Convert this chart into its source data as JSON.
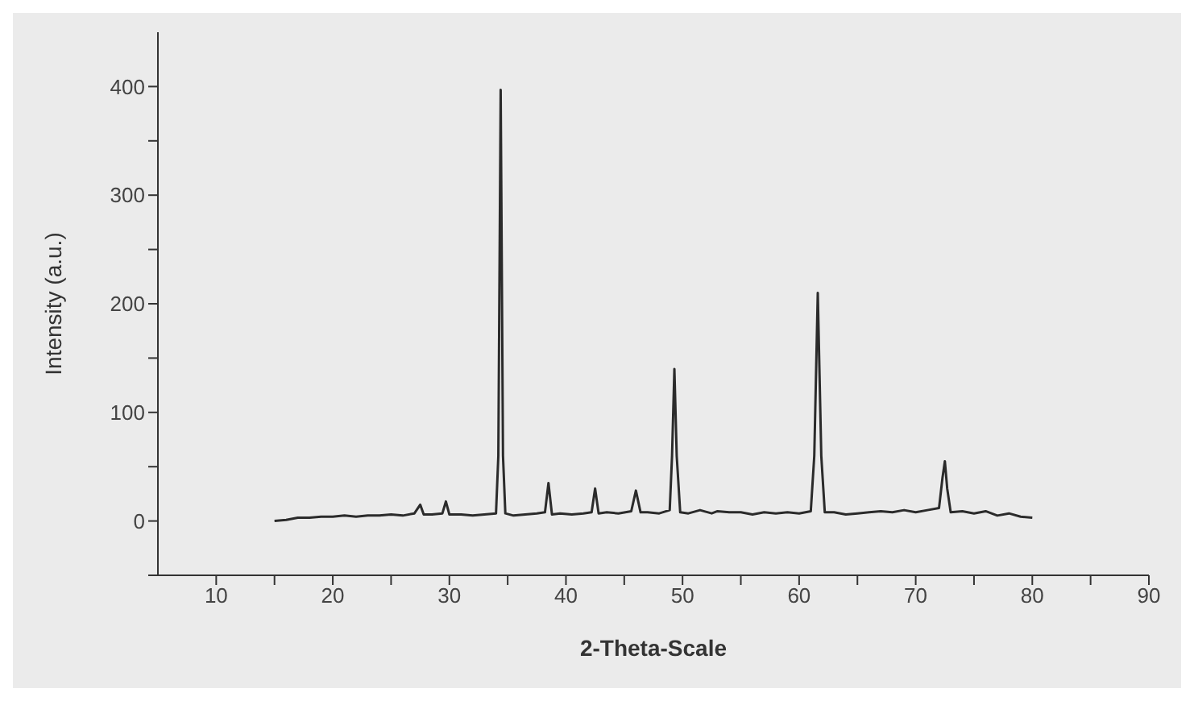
{
  "chart_data": {
    "type": "line",
    "xlabel": "2-Theta-Scale",
    "ylabel": "Intensity (a.u.)",
    "xlim": [
      5,
      90
    ],
    "ylim": [
      -50,
      450
    ],
    "xticks": [
      10,
      {
        "value": 15,
        "label": null
      },
      20,
      {
        "value": 25,
        "label": null
      },
      30,
      {
        "value": 35,
        "label": null
      },
      40,
      {
        "value": 45,
        "label": null
      },
      50,
      {
        "value": 55,
        "label": null
      },
      60,
      {
        "value": 65,
        "label": null
      },
      70,
      {
        "value": 75,
        "label": null
      },
      80,
      {
        "value": 85,
        "label": null
      },
      90
    ],
    "yticks": [
      {
        "value": -50,
        "label": null
      },
      0,
      {
        "value": 50,
        "label": null
      },
      100,
      {
        "value": 150,
        "label": null
      },
      200,
      {
        "value": 250,
        "label": null
      },
      300,
      {
        "value": 350,
        "label": null
      },
      400
    ],
    "grid": false,
    "legend": false,
    "marker": "none",
    "line_style": "solid",
    "x": [
      15,
      16,
      17,
      18,
      19,
      20,
      21,
      22,
      23,
      24,
      25,
      26,
      27,
      27.5,
      27.8,
      28.5,
      29.4,
      29.7,
      30,
      31,
      32,
      33,
      34,
      34.2,
      34.4,
      34.6,
      34.8,
      35.5,
      36.5,
      37.5,
      38.2,
      38.5,
      38.8,
      39.5,
      40.5,
      41.5,
      42.2,
      42.5,
      42.8,
      43.5,
      44.5,
      45.6,
      46,
      46.4,
      47,
      48,
      48.9,
      49.1,
      49.3,
      49.5,
      49.8,
      50.5,
      51.5,
      52.5,
      53,
      54,
      55,
      56,
      57,
      58,
      59,
      60,
      61,
      61.3,
      61.6,
      61.9,
      62.2,
      63,
      64,
      65,
      66,
      67,
      68,
      69,
      70,
      71,
      72,
      72.3,
      72.5,
      72.7,
      73,
      74,
      75,
      76,
      77,
      78,
      79,
      80
    ],
    "series": [
      {
        "color": "#2b2b2b",
        "values": [
          0,
          1,
          3,
          3,
          4,
          4,
          5,
          4,
          5,
          5,
          6,
          5,
          7,
          15,
          6,
          6,
          7,
          18,
          6,
          6,
          5,
          6,
          7,
          60,
          397,
          60,
          7,
          5,
          6,
          7,
          8,
          35,
          6,
          7,
          6,
          7,
          8,
          30,
          7,
          8,
          7,
          9,
          28,
          8,
          8,
          7,
          10,
          60,
          140,
          60,
          8,
          7,
          10,
          7,
          9,
          8,
          8,
          6,
          8,
          7,
          8,
          7,
          9,
          60,
          210,
          60,
          8,
          8,
          6,
          7,
          8,
          9,
          8,
          10,
          8,
          10,
          12,
          40,
          55,
          30,
          8,
          9,
          7,
          9,
          5,
          7,
          4,
          3
        ]
      }
    ]
  }
}
